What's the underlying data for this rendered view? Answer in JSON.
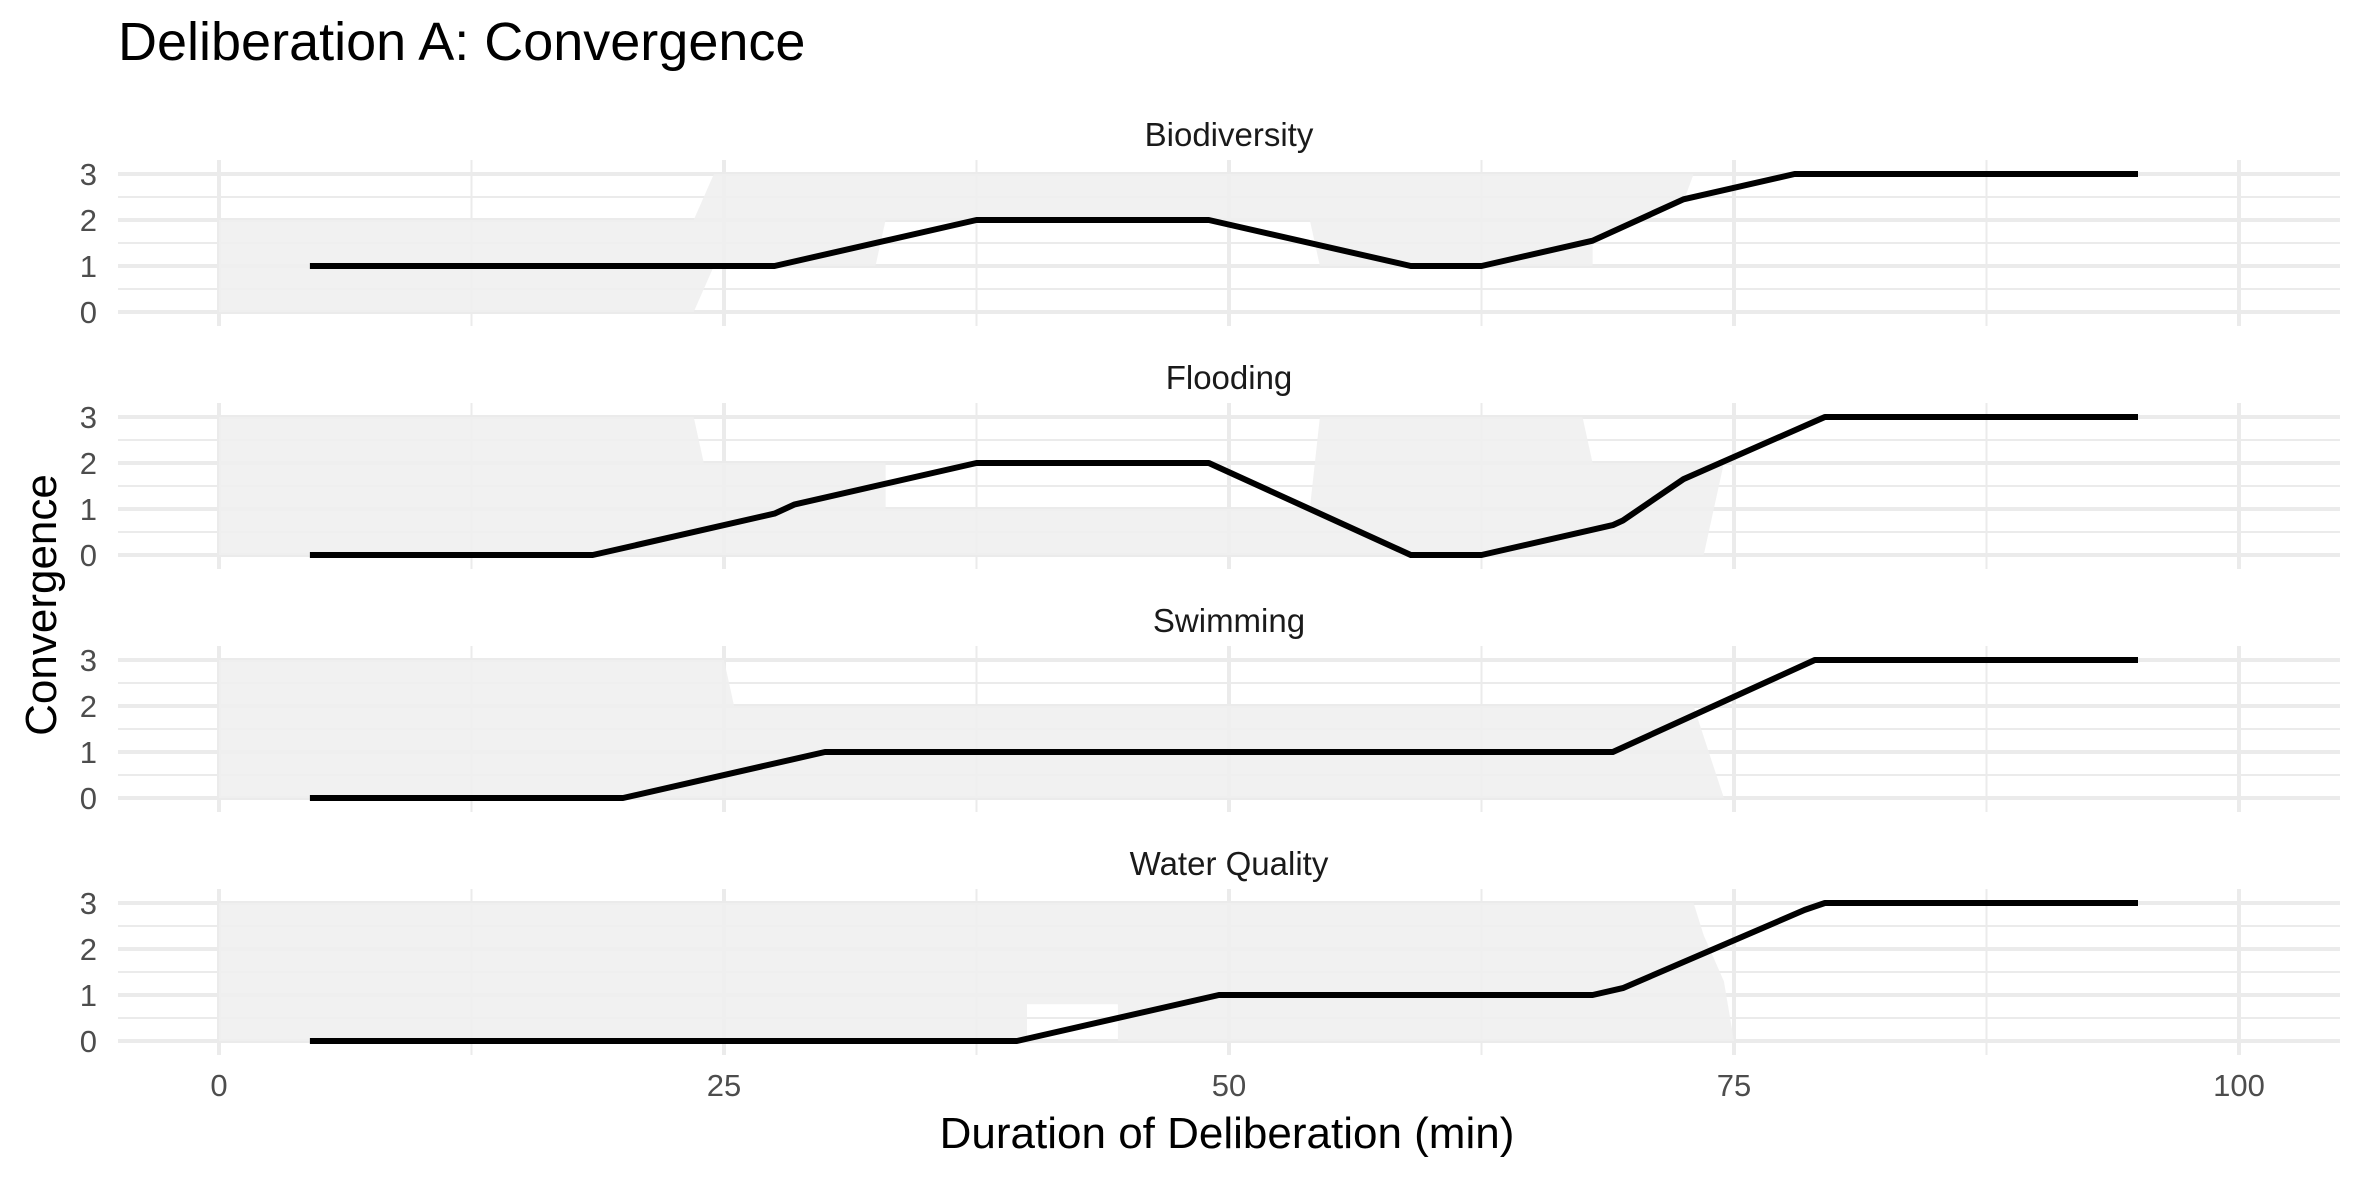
{
  "chart_data": {
    "type": "line",
    "title": "Deliberation A: Convergence",
    "xlabel": "Duration of Deliberation (min)",
    "ylabel": "Convergence",
    "xlim": [
      -5,
      105
    ],
    "ylim": [
      0,
      3
    ],
    "x_ticks": [
      0,
      25,
      50,
      75,
      100
    ],
    "y_ticks": [
      0,
      1,
      2,
      3
    ],
    "grid": true,
    "line_color": "#000000",
    "band_color": "#f0f0f0",
    "grid_color": "#ebebeb",
    "panels": [
      {
        "name": "Biodiversity",
        "band": [
          [
            0,
            2
          ],
          [
            23.5,
            2
          ],
          [
            24.5,
            3
          ],
          [
            73,
            3
          ],
          [
            72.5,
            2.4
          ],
          [
            68,
            1.6
          ],
          [
            68,
            1
          ],
          [
            54.5,
            1
          ],
          [
            54,
            2
          ],
          [
            33,
            2
          ],
          [
            32.5,
            1
          ],
          [
            24.5,
            1
          ],
          [
            23.5,
            0
          ],
          [
            0,
            0
          ]
        ],
        "points": [
          [
            4.5,
            1
          ],
          [
            27.5,
            1
          ],
          [
            37.5,
            2
          ],
          [
            49,
            2
          ],
          [
            59,
            1
          ],
          [
            62.5,
            1
          ],
          [
            68,
            1.55
          ],
          [
            72.5,
            2.45
          ],
          [
            78,
            3
          ],
          [
            95,
            3
          ]
        ]
      },
      {
        "name": "Flooding",
        "band": [
          [
            0,
            3
          ],
          [
            23.5,
            3
          ],
          [
            24,
            2
          ],
          [
            33,
            2
          ],
          [
            33,
            1
          ],
          [
            54,
            1
          ],
          [
            54.5,
            3
          ],
          [
            67.5,
            3
          ],
          [
            68,
            2
          ],
          [
            74.5,
            2
          ],
          [
            73.5,
            0
          ],
          [
            0,
            0
          ]
        ],
        "points": [
          [
            4.5,
            0
          ],
          [
            18.5,
            0
          ],
          [
            27.5,
            0.9
          ],
          [
            28.5,
            1.1
          ],
          [
            37.5,
            2
          ],
          [
            49,
            2
          ],
          [
            59,
            0
          ],
          [
            62.5,
            0
          ],
          [
            69,
            0.65
          ],
          [
            69.5,
            0.75
          ],
          [
            72.5,
            1.65
          ],
          [
            79.5,
            3
          ],
          [
            95,
            3
          ]
        ]
      },
      {
        "name": "Swimming",
        "band": [
          [
            0,
            3
          ],
          [
            25,
            3
          ],
          [
            25.5,
            2
          ],
          [
            68,
            2
          ],
          [
            73,
            2
          ],
          [
            74.5,
            0
          ],
          [
            0,
            0
          ]
        ],
        "points": [
          [
            4.5,
            0
          ],
          [
            20,
            0
          ],
          [
            30,
            1
          ],
          [
            69,
            1
          ],
          [
            79,
            3
          ],
          [
            95,
            3
          ]
        ]
      },
      {
        "name": "Water Quality",
        "band": [
          [
            0,
            3
          ],
          [
            73,
            3
          ],
          [
            73.5,
            2.3
          ],
          [
            74.5,
            1.3
          ],
          [
            75,
            0
          ],
          [
            44.5,
            0
          ],
          [
            44.5,
            0.8
          ],
          [
            40,
            0.8
          ],
          [
            40,
            0
          ],
          [
            0,
            0
          ]
        ],
        "points": [
          [
            4.5,
            0
          ],
          [
            39.5,
            0
          ],
          [
            49.5,
            1
          ],
          [
            68,
            1
          ],
          [
            69.5,
            1.15
          ],
          [
            78.5,
            2.85
          ],
          [
            79.5,
            3
          ],
          [
            95,
            3
          ]
        ]
      }
    ]
  }
}
